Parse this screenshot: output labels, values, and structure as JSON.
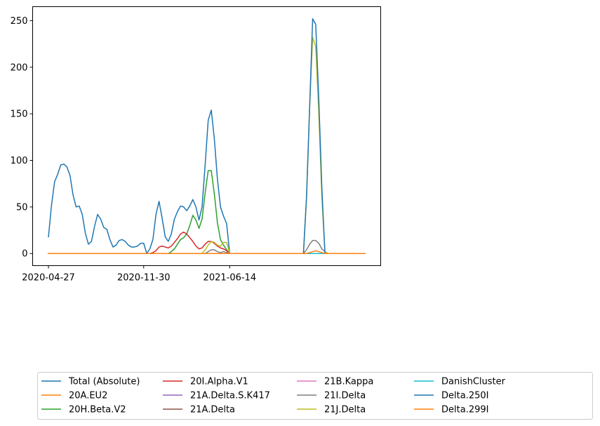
{
  "chart_data": {
    "type": "line",
    "title": "",
    "xlabel": "",
    "ylabel": "",
    "ylim": [
      -13,
      265
    ],
    "yticks": [
      0,
      50,
      100,
      150,
      200,
      250
    ],
    "x_start": "2020-04-27",
    "x_step_days": 7,
    "x_count": 104,
    "xticks": [
      "2020-04-27",
      "2020-11-30",
      "2021-06-14"
    ],
    "legend_position": "bottom",
    "grid": false,
    "series": [
      {
        "name": "Total (Absolute)",
        "color": "#1f77b4",
        "points": [
          [
            0,
            18
          ],
          [
            1,
            52
          ],
          [
            2,
            77
          ],
          [
            3,
            85
          ],
          [
            4,
            95
          ],
          [
            5,
            96
          ],
          [
            6,
            93
          ],
          [
            7,
            84
          ],
          [
            8,
            63
          ],
          [
            9,
            50
          ],
          [
            10,
            51
          ],
          [
            11,
            42
          ],
          [
            12,
            22
          ],
          [
            13,
            10
          ],
          [
            14,
            13
          ],
          [
            15,
            29
          ],
          [
            16,
            42
          ],
          [
            17,
            37
          ],
          [
            18,
            28
          ],
          [
            19,
            26
          ],
          [
            20,
            15
          ],
          [
            21,
            7
          ],
          [
            22,
            9
          ],
          [
            23,
            14
          ],
          [
            24,
            15
          ],
          [
            25,
            13
          ],
          [
            26,
            9
          ],
          [
            27,
            7
          ],
          [
            28,
            7
          ],
          [
            29,
            8
          ],
          [
            30,
            11
          ],
          [
            31,
            11
          ],
          [
            32,
            0
          ],
          [
            33,
            5
          ],
          [
            34,
            15
          ],
          [
            35,
            42
          ],
          [
            36,
            56
          ],
          [
            37,
            38
          ],
          [
            38,
            18
          ],
          [
            39,
            13
          ],
          [
            40,
            21
          ],
          [
            41,
            37
          ],
          [
            42,
            45
          ],
          [
            43,
            51
          ],
          [
            44,
            50
          ],
          [
            45,
            46
          ],
          [
            46,
            51
          ],
          [
            47,
            58
          ],
          [
            48,
            50
          ],
          [
            49,
            36
          ],
          [
            50,
            50
          ],
          [
            51,
            95
          ],
          [
            52,
            143
          ],
          [
            53,
            154
          ],
          [
            54,
            123
          ],
          [
            55,
            80
          ],
          [
            56,
            50
          ],
          [
            57,
            40
          ],
          [
            58,
            32
          ],
          [
            59,
            0
          ],
          [
            60,
            0
          ],
          [
            61,
            0
          ],
          [
            62,
            0
          ],
          [
            63,
            0
          ],
          [
            64,
            0
          ],
          [
            65,
            0
          ],
          [
            66,
            0
          ],
          [
            67,
            0
          ],
          [
            68,
            0
          ],
          [
            69,
            0
          ],
          [
            70,
            0
          ],
          [
            71,
            0
          ],
          [
            72,
            0
          ],
          [
            73,
            0
          ],
          [
            74,
            0
          ],
          [
            75,
            0
          ],
          [
            76,
            0
          ],
          [
            77,
            0
          ],
          [
            78,
            0
          ],
          [
            79,
            0
          ],
          [
            80,
            0
          ],
          [
            81,
            0
          ],
          [
            82,
            0
          ],
          [
            83,
            0
          ],
          [
            84,
            0
          ],
          [
            85,
            0
          ],
          [
            86,
            0
          ],
          [
            87,
            0
          ],
          [
            88,
            0
          ],
          [
            89,
            0
          ],
          [
            90,
            0
          ],
          [
            91,
            0
          ],
          [
            92,
            0
          ],
          [
            93,
            0
          ],
          [
            94,
            0
          ],
          [
            95,
            0
          ],
          [
            96,
            0
          ],
          [
            97,
            0
          ],
          [
            98,
            0
          ],
          [
            99,
            0
          ],
          [
            100,
            0
          ],
          [
            101,
            0
          ],
          [
            102,
            0
          ],
          [
            103,
            0
          ]
        ]
      },
      {
        "name": "20A.EU2",
        "color": "#ff7f0e",
        "points": [
          [
            0,
            0
          ],
          [
            103,
            0
          ]
        ]
      },
      {
        "name": "20H.Beta.V2",
        "color": "#2ca02c",
        "points": [
          [
            0,
            0
          ],
          [
            38,
            0
          ],
          [
            39,
            0
          ],
          [
            40,
            2
          ],
          [
            41,
            5
          ],
          [
            42,
            10
          ],
          [
            43,
            15
          ],
          [
            44,
            17
          ],
          [
            45,
            21
          ],
          [
            46,
            30
          ],
          [
            47,
            41
          ],
          [
            48,
            36
          ],
          [
            49,
            27
          ],
          [
            50,
            37
          ],
          [
            51,
            65
          ],
          [
            52,
            89
          ],
          [
            53,
            89
          ],
          [
            54,
            64
          ],
          [
            55,
            33
          ],
          [
            56,
            15
          ],
          [
            57,
            9
          ],
          [
            58,
            4
          ],
          [
            59,
            0
          ],
          [
            103,
            0
          ]
        ]
      },
      {
        "name": "20I.Alpha.V1",
        "color": "#d62728",
        "points": [
          [
            0,
            0
          ],
          [
            33,
            0
          ],
          [
            34,
            1
          ],
          [
            35,
            3
          ],
          [
            36,
            7
          ],
          [
            37,
            8
          ],
          [
            38,
            7
          ],
          [
            39,
            6
          ],
          [
            40,
            8
          ],
          [
            41,
            12
          ],
          [
            42,
            16
          ],
          [
            43,
            21
          ],
          [
            44,
            23
          ],
          [
            45,
            21
          ],
          [
            46,
            17
          ],
          [
            47,
            13
          ],
          [
            48,
            8
          ],
          [
            49,
            5
          ],
          [
            50,
            6
          ],
          [
            51,
            10
          ],
          [
            52,
            13
          ],
          [
            53,
            13
          ],
          [
            54,
            11
          ],
          [
            55,
            8
          ],
          [
            56,
            6
          ],
          [
            57,
            5
          ],
          [
            58,
            3
          ],
          [
            59,
            0
          ],
          [
            103,
            0
          ]
        ]
      },
      {
        "name": "21A.Delta.S.K417",
        "color": "#9467bd",
        "points": [
          [
            0,
            0
          ],
          [
            103,
            0
          ]
        ]
      },
      {
        "name": "21A.Delta",
        "color": "#8c564b",
        "points": [
          [
            0,
            0
          ],
          [
            103,
            0
          ]
        ]
      },
      {
        "name": "21B.Kappa",
        "color": "#e377c2",
        "points": [
          [
            0,
            0
          ],
          [
            103,
            0
          ]
        ]
      },
      {
        "name": "21I.Delta",
        "color": "#7f7f7f",
        "points": [
          [
            0,
            0
          ],
          [
            51,
            0
          ],
          [
            52,
            2
          ],
          [
            53,
            4
          ],
          [
            54,
            4
          ],
          [
            55,
            2
          ],
          [
            56,
            1
          ],
          [
            57,
            2
          ],
          [
            58,
            1
          ],
          [
            59,
            0
          ],
          [
            83,
            0
          ],
          [
            84,
            4
          ],
          [
            85,
            10
          ],
          [
            86,
            14
          ],
          [
            87,
            14
          ],
          [
            88,
            11
          ],
          [
            89,
            5
          ],
          [
            90,
            2
          ],
          [
            91,
            0
          ],
          [
            103,
            0
          ]
        ]
      },
      {
        "name": "21J.Delta",
        "color": "#bcbd22",
        "points": [
          [
            0,
            0
          ],
          [
            50,
            0
          ],
          [
            51,
            4
          ],
          [
            52,
            9
          ],
          [
            53,
            13
          ],
          [
            54,
            12
          ],
          [
            55,
            9
          ],
          [
            56,
            8
          ],
          [
            57,
            12
          ],
          [
            58,
            12
          ],
          [
            59,
            0
          ],
          [
            83,
            0
          ],
          [
            84,
            60
          ],
          [
            85,
            155
          ],
          [
            86,
            232
          ],
          [
            87,
            222
          ],
          [
            88,
            150
          ],
          [
            89,
            60
          ],
          [
            90,
            2
          ],
          [
            91,
            0
          ],
          [
            103,
            0
          ]
        ]
      },
      {
        "name": "DanishCluster",
        "color": "#17becf",
        "points": [
          [
            0,
            0
          ],
          [
            103,
            0
          ]
        ]
      },
      {
        "name": "Delta.250I",
        "color": "#1f77b4",
        "points": [
          [
            0,
            0
          ],
          [
            82,
            0
          ],
          [
            83,
            0
          ],
          [
            84,
            60
          ],
          [
            85,
            155
          ],
          [
            86,
            252
          ],
          [
            87,
            246
          ],
          [
            88,
            165
          ],
          [
            89,
            70
          ],
          [
            90,
            0
          ],
          [
            103,
            0
          ]
        ]
      },
      {
        "name": "Delta.299I",
        "color": "#ff7f0e",
        "points": [
          [
            0,
            0
          ],
          [
            84,
            0
          ],
          [
            85,
            1
          ],
          [
            86,
            2
          ],
          [
            87,
            3
          ],
          [
            88,
            2
          ],
          [
            89,
            1
          ],
          [
            90,
            0
          ],
          [
            103,
            0
          ]
        ]
      }
    ]
  }
}
